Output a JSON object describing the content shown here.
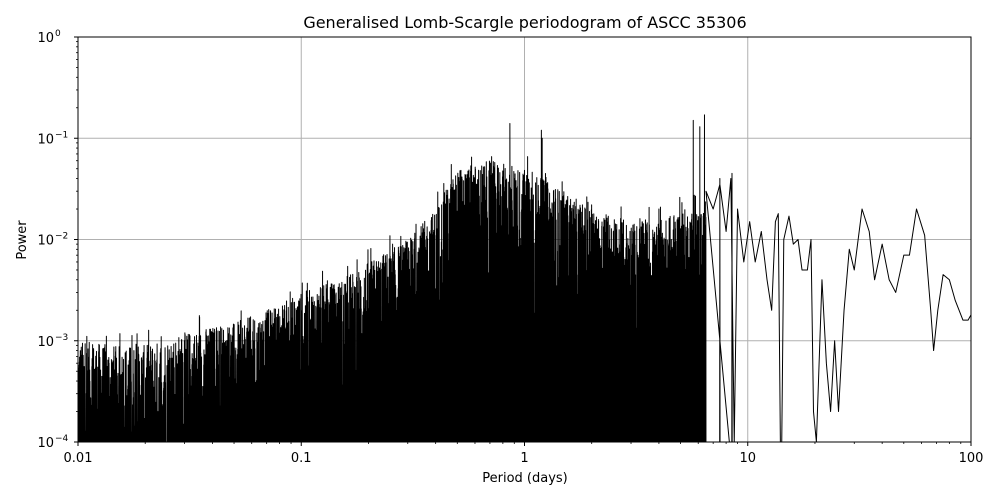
{
  "chart_data": {
    "type": "line",
    "title": "Generalised Lomb-Scargle periodogram of ASCC 35306",
    "xlabel": "Period (days)",
    "ylabel": "Power",
    "xscale": "log",
    "yscale": "log",
    "xlim": [
      0.01,
      100
    ],
    "ylim": [
      0.0001,
      1
    ],
    "x_ticks": [
      {
        "value": 0.01,
        "label": "0.01"
      },
      {
        "value": 0.1,
        "label": "0.1"
      },
      {
        "value": 1,
        "label": "1"
      },
      {
        "value": 10,
        "label": "10"
      },
      {
        "value": 100,
        "label": "100"
      }
    ],
    "y_ticks": [
      {
        "value": 0.0001,
        "label": "10",
        "exp": "−4"
      },
      {
        "value": 0.001,
        "label": "10",
        "exp": "−3"
      },
      {
        "value": 0.01,
        "label": "10",
        "exp": "−2"
      },
      {
        "value": 0.1,
        "label": "10",
        "exp": "−1"
      },
      {
        "value": 1,
        "label": "10",
        "exp": "0"
      }
    ],
    "grid": true,
    "line_color": "#000000",
    "grid_color": "#b0b0b0",
    "series": [
      {
        "envelope": [
          [
            0.01,
            0.001
          ],
          [
            0.015,
            0.0009
          ],
          [
            0.02,
            0.0009
          ],
          [
            0.03,
            0.0012
          ],
          [
            0.04,
            0.0014
          ],
          [
            0.05,
            0.0015
          ],
          [
            0.07,
            0.002
          ],
          [
            0.1,
            0.003
          ],
          [
            0.15,
            0.004
          ],
          [
            0.2,
            0.006
          ],
          [
            0.3,
            0.01
          ],
          [
            0.4,
            0.02
          ],
          [
            0.5,
            0.05
          ],
          [
            0.7,
            0.06
          ],
          [
            1.0,
            0.05
          ],
          [
            1.5,
            0.03
          ],
          [
            2.0,
            0.02
          ],
          [
            3.0,
            0.015
          ],
          [
            4.0,
            0.015
          ],
          [
            5.0,
            0.02
          ]
        ],
        "peaks": [
          {
            "x": 0.47,
            "y": 0.055
          },
          {
            "x": 0.55,
            "y": 0.04
          },
          {
            "x": 0.59,
            "y": 0.043
          },
          {
            "x": 0.86,
            "y": 0.14
          },
          {
            "x": 0.9,
            "y": 0.04
          },
          {
            "x": 1.19,
            "y": 0.12
          },
          {
            "x": 1.2,
            "y": 0.1
          },
          {
            "x": 1.05,
            "y": 0.02
          },
          {
            "x": 2.5,
            "y": 0.012
          },
          {
            "x": 4.0,
            "y": 0.02
          },
          {
            "x": 5.7,
            "y": 0.15
          },
          {
            "x": 6.1,
            "y": 0.13
          },
          {
            "x": 6.4,
            "y": 0.17
          },
          {
            "x": 7.5,
            "y": 0.04
          },
          {
            "x": 8.5,
            "y": 0.045
          }
        ],
        "smooth_tail": [
          [
            6.5,
            0.03
          ],
          [
            7.0,
            0.02
          ],
          [
            7.5,
            0.035
          ],
          [
            8.0,
            0.012
          ],
          [
            8.4,
            0.04
          ],
          [
            8.7,
            0.0001
          ],
          [
            9.0,
            0.02
          ],
          [
            9.6,
            0.006
          ],
          [
            10.2,
            0.015
          ],
          [
            10.8,
            0.006
          ],
          [
            11.5,
            0.012
          ],
          [
            12.2,
            0.004
          ],
          [
            12.8,
            0.002
          ],
          [
            13.3,
            0.015
          ],
          [
            13.7,
            0.018
          ],
          [
            14.0,
            0.0001
          ],
          [
            14.2,
            0.0001
          ],
          [
            14.5,
            0.01
          ],
          [
            15.3,
            0.017
          ],
          [
            16.0,
            0.009
          ],
          [
            16.8,
            0.01
          ],
          [
            17.5,
            0.005
          ],
          [
            18.5,
            0.005
          ],
          [
            19.2,
            0.01
          ],
          [
            19.7,
            0.0002
          ],
          [
            20.3,
            0.0001
          ],
          [
            21.5,
            0.004
          ],
          [
            22.5,
            0.0006
          ],
          [
            23.5,
            0.0002
          ],
          [
            24.5,
            0.001
          ],
          [
            25.5,
            0.0002
          ],
          [
            27.0,
            0.002
          ],
          [
            28.5,
            0.008
          ],
          [
            30.0,
            0.005
          ],
          [
            32.5,
            0.02
          ],
          [
            35.0,
            0.012
          ],
          [
            37.0,
            0.004
          ],
          [
            40.0,
            0.009
          ],
          [
            43.0,
            0.004
          ],
          [
            46.0,
            0.003
          ],
          [
            50.0,
            0.007
          ],
          [
            53.0,
            0.007
          ],
          [
            57.0,
            0.02
          ],
          [
            62.0,
            0.011
          ],
          [
            66.0,
            0.002
          ],
          [
            68.0,
            0.0008
          ],
          [
            71.0,
            0.002
          ],
          [
            75.0,
            0.0045
          ],
          [
            80.0,
            0.004
          ],
          [
            85.0,
            0.0025
          ],
          [
            92.0,
            0.0016
          ],
          [
            97.0,
            0.0016
          ],
          [
            100.0,
            0.0018
          ]
        ]
      }
    ]
  }
}
